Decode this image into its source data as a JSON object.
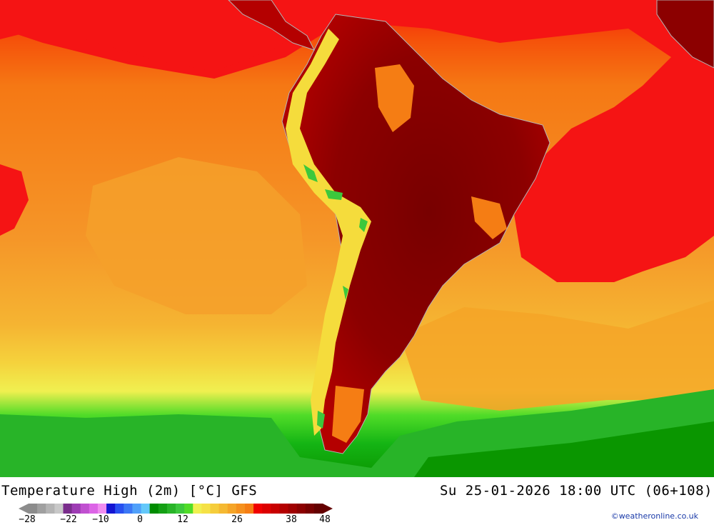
{
  "title": "Temperature High (2m) [°C] GFS",
  "datetime": "Su 25-01-2026 18:00 UTC (06+108)",
  "credit": "©weatheronline.co.uk",
  "legend": {
    "ticks": [
      "−28",
      "−22",
      "−10",
      "0",
      "12",
      "26",
      "38",
      "48"
    ],
    "colors": [
      "#8c8c8c",
      "#a0a0a0",
      "#b4b4b4",
      "#c8c8c8",
      "#7a2d8c",
      "#9e3cb4",
      "#c050d0",
      "#dc64e6",
      "#f08cf0",
      "#1414d2",
      "#2850f0",
      "#3c78f5",
      "#50a0fa",
      "#64c8fa",
      "#008c00",
      "#14a014",
      "#28b428",
      "#3cc83c",
      "#50dc28",
      "#f0f050",
      "#f5e146",
      "#f5cd3c",
      "#f5b932",
      "#f5a528",
      "#f5911e",
      "#f57d14",
      "#f00000",
      "#dc0000",
      "#c80000",
      "#b40000",
      "#a00000",
      "#8c0000",
      "#780000",
      "#640000"
    ]
  },
  "map_colors": {
    "ocean_warm": "#f58c14",
    "ocean_hot": "#f51414",
    "land_hot": "#8c0000",
    "south_green": "#14b400"
  }
}
